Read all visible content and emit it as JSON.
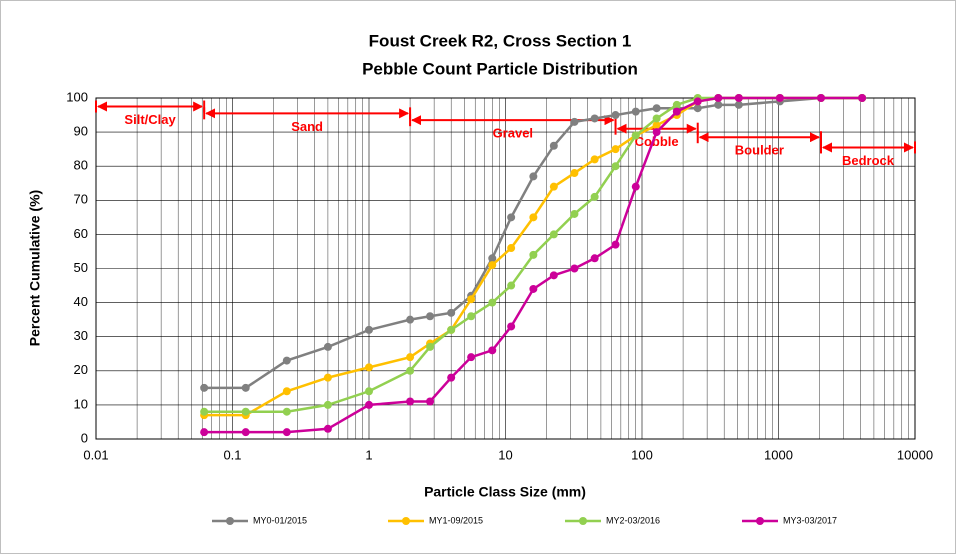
{
  "chart_data": {
    "type": "line",
    "title": [
      "Foust Creek R2, Cross Section 1",
      "Pebble Count Particle Distribution"
    ],
    "x_label": "Particle Class Size (mm)",
    "y_label": "Percent Cumulative (%)",
    "x": [
      0.062,
      0.125,
      0.25,
      0.5,
      1,
      2,
      2.8,
      4,
      5.6,
      8,
      11,
      16,
      22.6,
      32,
      45,
      64,
      90,
      128,
      180,
      256,
      362,
      512,
      1024,
      2048,
      4096
    ],
    "series": [
      {
        "name": "MY0-01/2015",
        "color": "#808080",
        "values": [
          15,
          15,
          23,
          27,
          32,
          35,
          36,
          37,
          42,
          53,
          65,
          77,
          86,
          93,
          94,
          95,
          96,
          97,
          97,
          97,
          98,
          98,
          99,
          100,
          100
        ]
      },
      {
        "name": "MY1-09/2015",
        "color": "#ffc000",
        "values": [
          7,
          7,
          14,
          18,
          21,
          24,
          28,
          32,
          41,
          51,
          56,
          65,
          74,
          78,
          82,
          85,
          89,
          92,
          95,
          99,
          100,
          100,
          100,
          100,
          100
        ]
      },
      {
        "name": "MY2-03/2016",
        "color": "#92d050",
        "values": [
          8,
          8,
          8,
          10,
          14,
          20,
          27,
          32,
          36,
          40,
          45,
          54,
          60,
          66,
          71,
          80,
          89,
          94,
          98,
          100,
          100,
          100,
          100,
          100,
          100
        ]
      },
      {
        "name": "MY3-03/2017",
        "color": "#cc0099",
        "values": [
          2,
          2,
          2,
          3,
          10,
          11,
          11,
          18,
          24,
          26,
          33,
          44,
          48,
          50,
          53,
          57,
          74,
          90,
          96,
          99,
          100,
          100,
          100,
          100,
          100
        ]
      }
    ],
    "xlim": [
      0.01,
      10000
    ],
    "xticks": [
      0.01,
      0.1,
      1,
      10,
      100,
      1000,
      10000
    ],
    "xlog": true,
    "xminor_grid": true,
    "ylim": [
      0,
      100
    ],
    "yticks": [
      0,
      10,
      20,
      30,
      40,
      50,
      60,
      70,
      80,
      90,
      100
    ],
    "grid": true,
    "legend": "bottom",
    "annotations": [
      {
        "text": "Silt/Clay",
        "x": [
          0.01,
          0.062
        ],
        "y": 97.5,
        "color": "#ff0000"
      },
      {
        "text": "Sand",
        "x": [
          0.062,
          2
        ],
        "y": 95.5,
        "color": "#ff0000"
      },
      {
        "text": "Gravel",
        "x": [
          2,
          64
        ],
        "y": 93.5,
        "color": "#ff0000"
      },
      {
        "text": "Cobble",
        "x": [
          64,
          256
        ],
        "y": 91,
        "color": "#ff0000"
      },
      {
        "text": "Boulder",
        "x": [
          256,
          2048
        ],
        "y": 88.5,
        "color": "#ff0000"
      },
      {
        "text": "Bedrock",
        "x": [
          2048,
          10000
        ],
        "y": 85.5,
        "color": "#ff0000"
      }
    ]
  }
}
